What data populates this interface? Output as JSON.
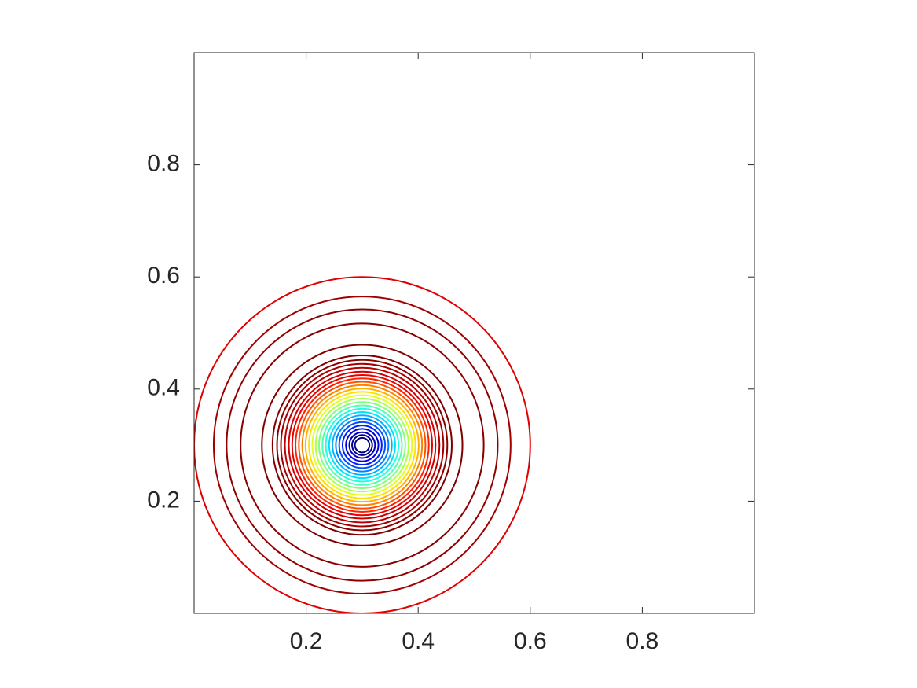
{
  "chart_data": {
    "type": "contour",
    "xlim": [
      0,
      1
    ],
    "ylim": [
      0,
      1
    ],
    "xticks": [
      0.2,
      0.4,
      0.6,
      0.8
    ],
    "yticks": [
      0.2,
      0.4,
      0.6,
      0.8
    ],
    "center": {
      "x": 0.3,
      "y": 0.3
    },
    "contours": [
      {
        "radius": 0.3,
        "color": "#e00000"
      },
      {
        "radius": 0.265,
        "color": "#a00000"
      },
      {
        "radius": 0.242,
        "color": "#900000"
      },
      {
        "radius": 0.217,
        "color": "#880000"
      },
      {
        "radius": 0.179,
        "color": "#800000"
      },
      {
        "radius": 0.16,
        "color": "#800000"
      },
      {
        "radius": 0.152,
        "color": "#8a0000"
      },
      {
        "radius": 0.145,
        "color": "#a00000"
      },
      {
        "radius": 0.138,
        "color": "#b80000"
      },
      {
        "radius": 0.131,
        "color": "#d00000"
      },
      {
        "radius": 0.125,
        "color": "#e80000"
      },
      {
        "radius": 0.119,
        "color": "#ff2000"
      },
      {
        "radius": 0.113,
        "color": "#ff5000"
      },
      {
        "radius": 0.107,
        "color": "#ff8000"
      },
      {
        "radius": 0.101,
        "color": "#ffb000"
      },
      {
        "radius": 0.095,
        "color": "#ffe000"
      },
      {
        "radius": 0.089,
        "color": "#e0ff20"
      },
      {
        "radius": 0.083,
        "color": "#b0ff50"
      },
      {
        "radius": 0.077,
        "color": "#80ff80"
      },
      {
        "radius": 0.071,
        "color": "#50ffb0"
      },
      {
        "radius": 0.065,
        "color": "#20ffe0"
      },
      {
        "radius": 0.059,
        "color": "#00e0ff"
      },
      {
        "radius": 0.053,
        "color": "#00b0ff"
      },
      {
        "radius": 0.047,
        "color": "#0080ff"
      },
      {
        "radius": 0.041,
        "color": "#0050ff"
      },
      {
        "radius": 0.035,
        "color": "#0020ff"
      },
      {
        "radius": 0.029,
        "color": "#0000e0"
      },
      {
        "radius": 0.023,
        "color": "#0000b8"
      },
      {
        "radius": 0.018,
        "color": "#000090"
      },
      {
        "radius": 0.013,
        "color": "#000080"
      }
    ]
  }
}
